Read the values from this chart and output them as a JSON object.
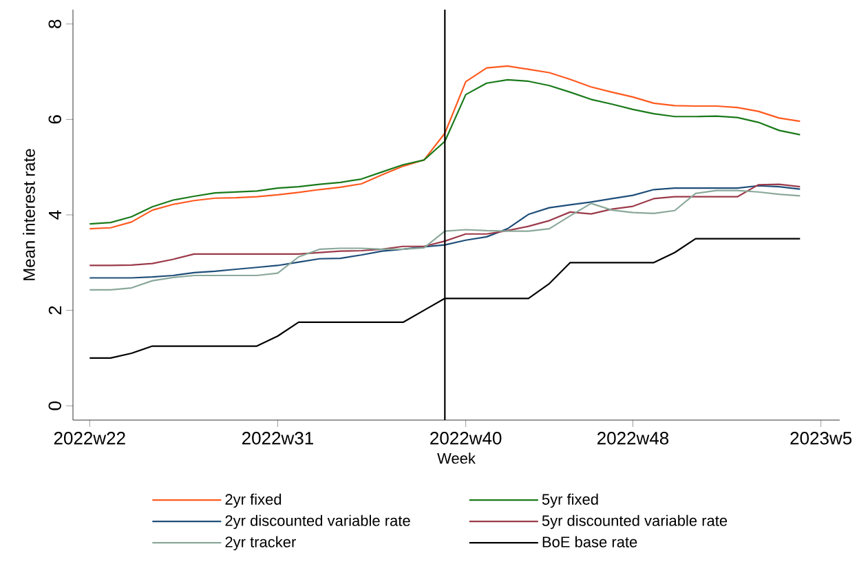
{
  "chart_data": {
    "type": "line",
    "xlabel": "Week",
    "ylabel": "Mean interest rate",
    "categories": [
      "2022w22",
      null,
      null,
      null,
      null,
      null,
      null,
      null,
      null,
      "2022w31",
      null,
      null,
      null,
      null,
      null,
      null,
      null,
      null,
      "2022w40",
      null,
      null,
      null,
      null,
      null,
      null,
      null,
      "2022w48",
      null,
      null,
      null,
      null,
      null,
      null,
      null,
      null,
      "2023w5"
    ],
    "ylim": [
      -0.3,
      8.3
    ],
    "yticks": [
      0,
      2,
      4,
      6,
      8
    ],
    "legend": "bottom",
    "marker": "none",
    "line_style": "solid",
    "series": [
      {
        "name": "2yr fixed",
        "color": "#ff5a1f",
        "values": [
          3.71,
          3.73,
          3.85,
          4.1,
          4.22,
          4.3,
          4.35,
          4.36,
          4.38,
          4.42,
          4.47,
          4.53,
          4.58,
          4.65,
          4.84,
          5.02,
          5.15,
          5.71,
          6.79,
          7.08,
          7.12,
          7.05,
          6.98,
          6.84,
          6.68,
          6.57,
          6.47,
          6.34,
          6.29,
          6.28,
          6.28,
          6.25,
          6.17,
          6.03,
          5.96,
          null
        ]
      },
      {
        "name": "5yr fixed",
        "color": "#1a7a1a",
        "values": [
          3.81,
          3.84,
          3.96,
          4.17,
          4.31,
          4.39,
          4.46,
          4.48,
          4.5,
          4.56,
          4.59,
          4.64,
          4.68,
          4.75,
          4.9,
          5.05,
          5.15,
          5.54,
          6.52,
          6.76,
          6.83,
          6.8,
          6.71,
          6.57,
          6.42,
          6.32,
          6.21,
          6.12,
          6.06,
          6.06,
          6.07,
          6.04,
          5.94,
          5.77,
          5.68,
          null
        ]
      },
      {
        "name": "2yr discounted variable rate",
        "color": "#1f4e79",
        "values": [
          2.68,
          2.68,
          2.68,
          2.7,
          2.73,
          2.79,
          2.82,
          2.86,
          2.9,
          2.94,
          3.01,
          3.08,
          3.09,
          3.16,
          3.24,
          3.28,
          3.33,
          3.37,
          3.47,
          3.54,
          3.71,
          4.01,
          4.15,
          4.21,
          4.27,
          4.34,
          4.41,
          4.53,
          4.56,
          4.56,
          4.56,
          4.56,
          4.61,
          4.59,
          4.54,
          null
        ]
      },
      {
        "name": "5yr discounted variable rate",
        "color": "#9b3a4a",
        "values": [
          2.94,
          2.94,
          2.95,
          2.98,
          3.07,
          3.18,
          3.18,
          3.18,
          3.18,
          3.18,
          3.18,
          3.21,
          3.24,
          3.25,
          3.28,
          3.34,
          3.34,
          3.45,
          3.6,
          3.6,
          3.67,
          3.76,
          3.88,
          4.06,
          4.02,
          4.12,
          4.18,
          4.34,
          4.38,
          4.38,
          4.38,
          4.38,
          4.63,
          4.64,
          4.59,
          null
        ]
      },
      {
        "name": "2yr tracker",
        "color": "#8aa89a",
        "values": [
          2.43,
          2.43,
          2.47,
          2.62,
          2.69,
          2.73,
          2.73,
          2.73,
          2.73,
          2.78,
          3.12,
          3.28,
          3.3,
          3.3,
          3.28,
          3.28,
          3.31,
          3.66,
          3.69,
          3.67,
          3.66,
          3.66,
          3.71,
          3.98,
          4.24,
          4.1,
          4.05,
          4.03,
          4.09,
          4.45,
          4.51,
          4.51,
          4.48,
          4.43,
          4.4,
          null
        ]
      },
      {
        "name": "BoE base rate",
        "color": "#000000",
        "values": [
          1.0,
          1.0,
          1.1,
          1.25,
          1.25,
          1.25,
          1.25,
          1.25,
          1.25,
          1.46,
          1.75,
          1.75,
          1.75,
          1.75,
          1.75,
          1.75,
          2.0,
          2.25,
          2.25,
          2.25,
          2.25,
          2.25,
          2.56,
          3.0,
          3.0,
          3.0,
          3.0,
          3.0,
          3.21,
          3.5,
          3.5,
          3.5,
          3.5,
          3.5,
          3.5,
          null
        ]
      }
    ]
  }
}
